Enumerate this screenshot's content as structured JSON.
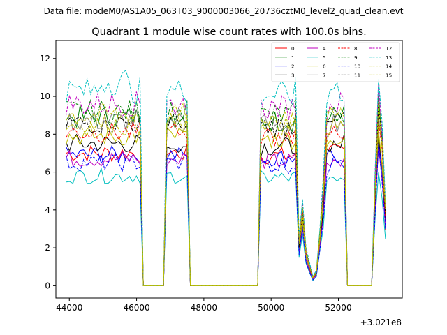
{
  "chart_data": {
    "type": "line",
    "suptitle": "Data file: modeM0/AS1A05_063T03_9000003066_20736cztM0_level2_quad_clean.evt",
    "title": "Quadrant 1 module wise count rates with 100.0s bins.",
    "xlabel": "",
    "ylabel": "",
    "x_offset_label": "+3.021e8",
    "xlim": [
      43600,
      53900
    ],
    "ylim": [
      -0.65,
      12.95
    ],
    "x_ticks": [
      44000,
      46000,
      48000,
      50000,
      52000
    ],
    "x_tick_labels": [
      "44000",
      "46000",
      "48000",
      "50000",
      "52000"
    ],
    "y_ticks": [
      0,
      2,
      4,
      6,
      8,
      10,
      12
    ],
    "y_tick_labels": [
      "0",
      "2",
      "4",
      "6",
      "8",
      "10",
      "12"
    ],
    "legend_position": "top-right",
    "x_segments": [
      [
        43900,
        46100,
        22
      ],
      [
        46200,
        46800,
        6
      ],
      [
        46900,
        47500,
        6
      ],
      [
        47600,
        49600,
        20
      ],
      [
        49700,
        53400,
        37
      ]
    ],
    "series": [
      {
        "name": "0",
        "color": "#ff0000",
        "dash": "solid",
        "base": 7.0
      },
      {
        "name": "1",
        "color": "#008000",
        "dash": "solid",
        "base": 8.9
      },
      {
        "name": "2",
        "color": "#0000ff",
        "dash": "solid",
        "base": 6.9
      },
      {
        "name": "3",
        "color": "#000000",
        "dash": "solid",
        "base": 7.5
      },
      {
        "name": "4",
        "color": "#bf00bf",
        "dash": "solid",
        "base": 6.7
      },
      {
        "name": "5",
        "color": "#00bfbf",
        "dash": "solid",
        "base": 5.8
      },
      {
        "name": "6",
        "color": "#bfbf00",
        "dash": "solid",
        "base": 7.9
      },
      {
        "name": "7",
        "color": "#808080",
        "dash": "solid",
        "base": 8.7
      },
      {
        "name": "8",
        "color": "#ff0000",
        "dash": "dashed",
        "base": 8.1
      },
      {
        "name": "9",
        "color": "#008000",
        "dash": "dashed",
        "base": 9.2
      },
      {
        "name": "10",
        "color": "#0000ff",
        "dash": "dashed",
        "base": 6.5
      },
      {
        "name": "11",
        "color": "#000000",
        "dash": "dashed",
        "base": 8.6
      },
      {
        "name": "12",
        "color": "#bf00bf",
        "dash": "dashed",
        "base": 9.6
      },
      {
        "name": "13",
        "color": "#00bfbf",
        "dash": "dashed",
        "base": 10.3
      },
      {
        "name": "14",
        "color": "#bfbf00",
        "dash": "dashed",
        "base": 9.0
      },
      {
        "name": "15",
        "color": "#bfbf00",
        "dash": "dashed",
        "base": 8.5
      }
    ]
  }
}
